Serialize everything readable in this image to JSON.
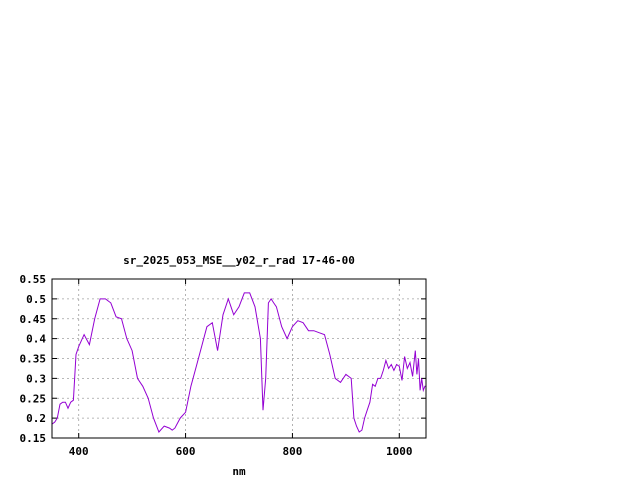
{
  "chart_data": {
    "type": "line",
    "title": "sr_2025_053_MSE__y02_r_rad 17-46-00",
    "xlabel": "nm",
    "ylabel": "",
    "xlim": [
      350,
      1050
    ],
    "ylim": [
      0.15,
      0.55
    ],
    "x_ticks": [
      400,
      600,
      800,
      1000
    ],
    "y_ticks": [
      0.15,
      0.2,
      0.25,
      0.3,
      0.35,
      0.4,
      0.45,
      0.5,
      0.55
    ],
    "x_tick_labels": [
      "400",
      "600",
      "800",
      "1000"
    ],
    "y_tick_labels": [
      "0.15",
      "0.2",
      "0.25",
      "0.3",
      "0.35",
      "0.4",
      "0.45",
      "0.5",
      "0.55"
    ],
    "grid": true,
    "legend": "none",
    "colors": {
      "line": "#9400d3",
      "grid": "#a0a0a0",
      "axis": "#000000"
    },
    "series": [
      {
        "x": [
          350,
          355,
          360,
          365,
          370,
          375,
          380,
          385,
          390,
          395,
          400,
          410,
          420,
          430,
          440,
          450,
          460,
          470,
          480,
          490,
          500,
          510,
          520,
          530,
          540,
          550,
          560,
          570,
          575,
          580,
          590,
          600,
          610,
          620,
          630,
          640,
          650,
          660,
          670,
          680,
          685,
          690,
          700,
          710,
          720,
          730,
          740,
          745,
          750,
          755,
          760,
          765,
          770,
          780,
          790,
          800,
          810,
          820,
          830,
          840,
          850,
          860,
          870,
          880,
          890,
          900,
          910,
          915,
          920,
          925,
          930,
          935,
          940,
          945,
          950,
          955,
          960,
          965,
          970,
          975,
          980,
          985,
          990,
          995,
          1000,
          1005,
          1010,
          1015,
          1020,
          1025,
          1030,
          1033,
          1036,
          1039,
          1042,
          1045,
          1048,
          1050
        ],
        "y": [
          0.185,
          0.19,
          0.2,
          0.235,
          0.24,
          0.24,
          0.225,
          0.24,
          0.245,
          0.36,
          0.38,
          0.41,
          0.385,
          0.45,
          0.5,
          0.5,
          0.49,
          0.455,
          0.45,
          0.4,
          0.37,
          0.3,
          0.28,
          0.25,
          0.2,
          0.165,
          0.18,
          0.175,
          0.17,
          0.175,
          0.2,
          0.215,
          0.28,
          0.33,
          0.38,
          0.43,
          0.44,
          0.37,
          0.46,
          0.5,
          0.48,
          0.46,
          0.48,
          0.515,
          0.515,
          0.48,
          0.4,
          0.22,
          0.3,
          0.49,
          0.5,
          0.49,
          0.48,
          0.43,
          0.4,
          0.43,
          0.445,
          0.44,
          0.42,
          0.42,
          0.415,
          0.41,
          0.36,
          0.3,
          0.29,
          0.31,
          0.3,
          0.2,
          0.18,
          0.165,
          0.17,
          0.2,
          0.22,
          0.24,
          0.285,
          0.28,
          0.3,
          0.3,
          0.32,
          0.345,
          0.325,
          0.335,
          0.32,
          0.335,
          0.33,
          0.295,
          0.355,
          0.325,
          0.34,
          0.305,
          0.37,
          0.31,
          0.35,
          0.27,
          0.3,
          0.27,
          0.28,
          0.28
        ]
      }
    ]
  }
}
